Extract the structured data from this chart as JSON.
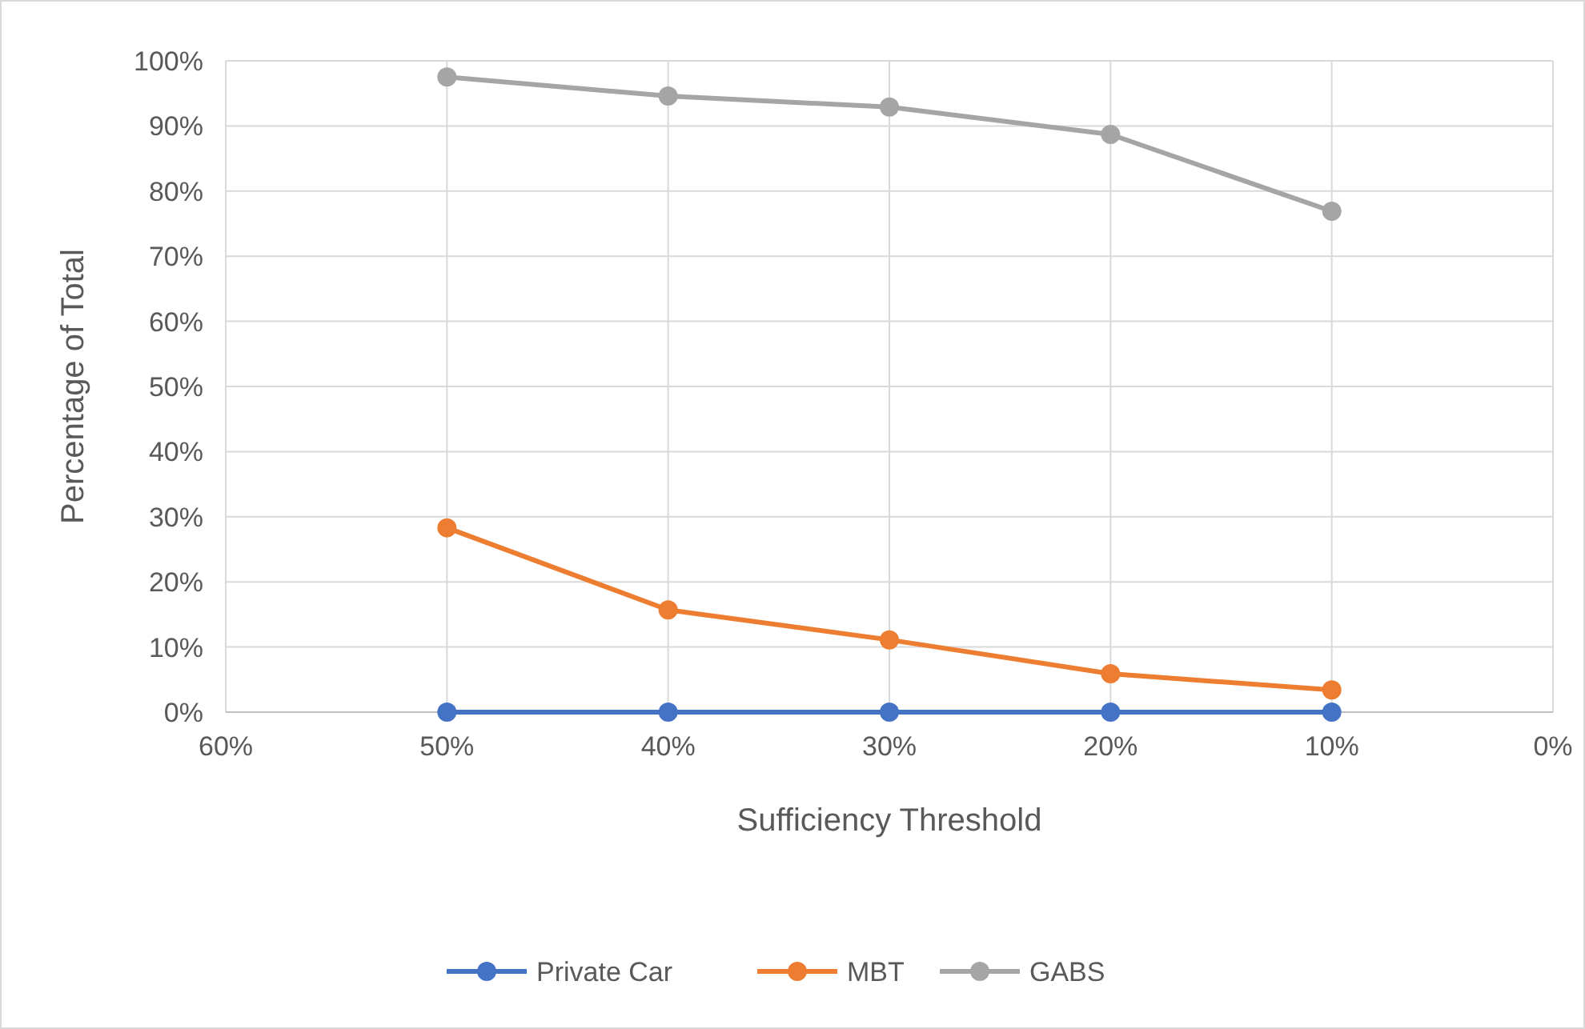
{
  "chart_data": {
    "type": "line",
    "xlabel": "Sufficiency Threshold",
    "ylabel": "Percentage of Total",
    "x": [
      50,
      40,
      30,
      20,
      10
    ],
    "series": [
      {
        "name": "Private Car",
        "color": "#4472c4",
        "values": [
          0,
          0,
          0,
          0,
          0
        ]
      },
      {
        "name": "MBT",
        "color": "#ed7d31",
        "values": [
          28.3,
          15.7,
          11.1,
          5.9,
          3.4
        ]
      },
      {
        "name": "GABS",
        "color": "#a5a5a5",
        "values": [
          97.5,
          94.6,
          92.9,
          88.7,
          76.9
        ]
      }
    ],
    "xlim": [
      60,
      0
    ],
    "xticks": [
      {
        "value": 60,
        "label": "60%"
      },
      {
        "value": 50,
        "label": "50%"
      },
      {
        "value": 40,
        "label": "40%"
      },
      {
        "value": 30,
        "label": "30%"
      },
      {
        "value": 20,
        "label": "20%"
      },
      {
        "value": 10,
        "label": "10%"
      },
      {
        "value": 0,
        "label": "0%"
      }
    ],
    "ylim": [
      0,
      100
    ],
    "yticks": [
      {
        "value": 0,
        "label": "0%"
      },
      {
        "value": 10,
        "label": "10%"
      },
      {
        "value": 20,
        "label": "20%"
      },
      {
        "value": 30,
        "label": "30%"
      },
      {
        "value": 40,
        "label": "40%"
      },
      {
        "value": 50,
        "label": "50%"
      },
      {
        "value": 60,
        "label": "60%"
      },
      {
        "value": 70,
        "label": "70%"
      },
      {
        "value": 80,
        "label": "80%"
      },
      {
        "value": 90,
        "label": "90%"
      },
      {
        "value": 100,
        "label": "100%"
      }
    ],
    "grid": true,
    "legend": "bottom",
    "marker": "circle",
    "line_style": "solid"
  }
}
